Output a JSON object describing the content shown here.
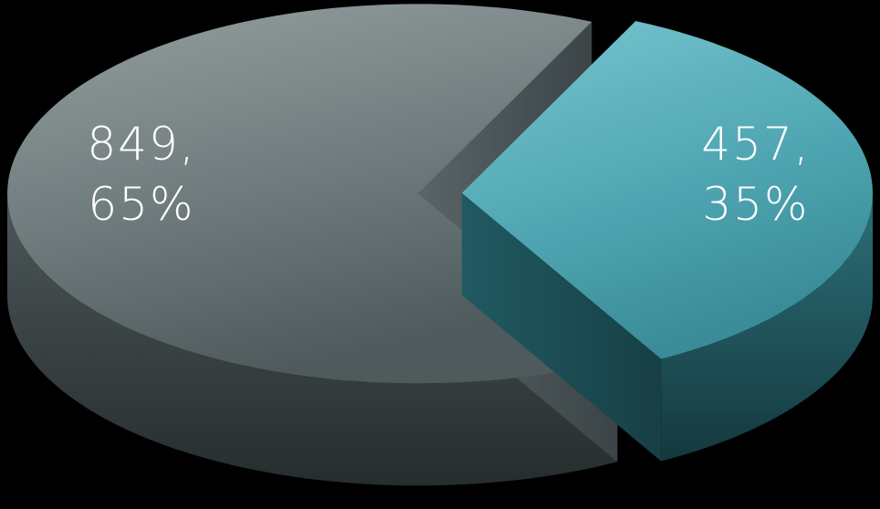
{
  "chart_data": {
    "type": "pie",
    "title": "",
    "slices": [
      {
        "value": 849,
        "label_line1": "849,",
        "label_line2": "65%",
        "color": "#8a9a9c"
      },
      {
        "value": 457,
        "label_line1": "457,",
        "label_line2": "35%",
        "color": "#5fb1bd"
      }
    ],
    "legend": "none",
    "style": "3d-exploded"
  }
}
